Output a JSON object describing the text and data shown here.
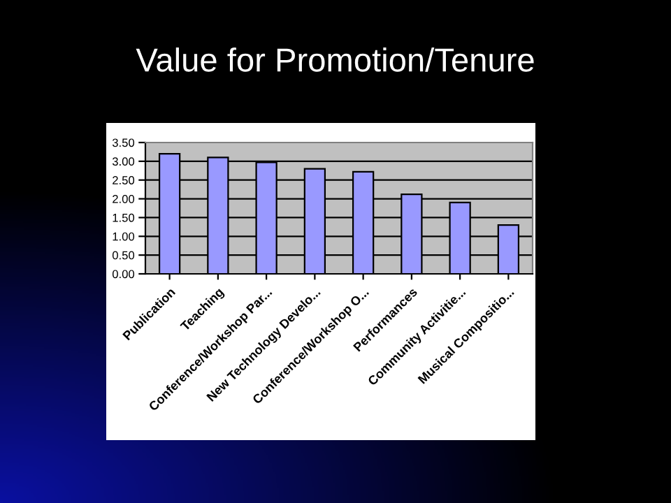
{
  "chart_data": {
    "type": "bar",
    "title": "Value for Promotion/Tenure",
    "categories": [
      "Publication",
      "Teaching",
      "Conference/Workshop Par...",
      "New Technology Develo...",
      "Conference/Workshop O...",
      "Performances",
      "Community Activitie...",
      "Musical Compositio..."
    ],
    "values": [
      3.2,
      3.1,
      2.97,
      2.8,
      2.72,
      2.12,
      1.9,
      1.3
    ],
    "color": "#9999ff",
    "ylim": [
      0,
      3.5
    ],
    "yticks": [
      {
        "value": 0,
        "label": "0.00"
      },
      {
        "value": 0.5,
        "label": "0.50"
      },
      {
        "value": 1,
        "label": "1.00"
      },
      {
        "value": 1.5,
        "label": "1.50"
      },
      {
        "value": 2,
        "label": "2.00"
      },
      {
        "value": 2.5,
        "label": "2.50"
      },
      {
        "value": 3,
        "label": "3.00"
      },
      {
        "value": 3.5,
        "label": "3.50"
      }
    ],
    "grid": "y"
  }
}
